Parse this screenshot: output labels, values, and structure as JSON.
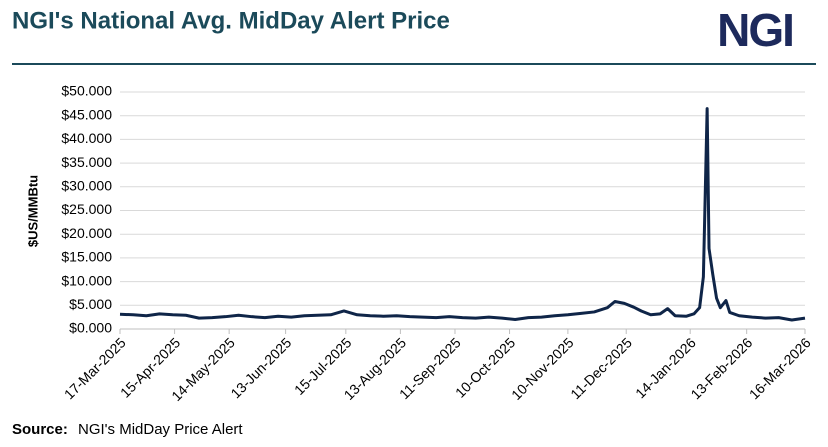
{
  "chart_data": {
    "type": "line",
    "title": "NGI's National Avg. MidDay Alert Price",
    "logo": "NGI",
    "y_label": "$US/MMBtu",
    "source_label": "Source:",
    "source_text": "NGI's MidDay Price Alert",
    "color": "#0f2548",
    "grid": true,
    "x": [
      "17-Mar-2025",
      "24-Mar-2025",
      "31-Mar-2025",
      "07-Apr-2025",
      "14-Apr-2025",
      "21-Apr-2025",
      "28-Apr-2025",
      "05-May-2025",
      "12-May-2025",
      "19-May-2025",
      "26-May-2025",
      "02-Jun-2025",
      "09-Jun-2025",
      "16-Jun-2025",
      "23-Jun-2025",
      "30-Jun-2025",
      "07-Jul-2025",
      "14-Jul-2025",
      "21-Jul-2025",
      "28-Jul-2025",
      "04-Aug-2025",
      "11-Aug-2025",
      "18-Aug-2025",
      "25-Aug-2025",
      "01-Sep-2025",
      "08-Sep-2025",
      "15-Sep-2025",
      "22-Sep-2025",
      "29-Sep-2025",
      "06-Oct-2025",
      "13-Oct-2025",
      "20-Oct-2025",
      "27-Oct-2025",
      "03-Nov-2025",
      "10-Nov-2025",
      "17-Nov-2025",
      "24-Nov-2025",
      "01-Dec-2025",
      "05-Dec-2025",
      "10-Dec-2025",
      "15-Dec-2025",
      "19-Dec-2025",
      "24-Dec-2025",
      "29-Dec-2025",
      "02-Jan-2026",
      "06-Jan-2026",
      "12-Jan-2026",
      "16-Jan-2026",
      "19-Jan-2026",
      "21-Jan-2026",
      "23-Jan-2026",
      "24-Jan-2026",
      "26-Jan-2026",
      "28-Jan-2026",
      "30-Jan-2026",
      "02-Feb-2026",
      "04-Feb-2026",
      "09-Feb-2026",
      "16-Feb-2026",
      "23-Feb-2026",
      "02-Mar-2026",
      "09-Mar-2026",
      "16-Mar-2026"
    ],
    "values": [
      3.1,
      3.0,
      2.8,
      3.2,
      3.0,
      2.9,
      2.3,
      2.4,
      2.6,
      2.9,
      2.6,
      2.4,
      2.7,
      2.5,
      2.8,
      2.9,
      3.0,
      3.8,
      3.0,
      2.8,
      2.7,
      2.8,
      2.6,
      2.5,
      2.4,
      2.6,
      2.4,
      2.3,
      2.5,
      2.3,
      2.0,
      2.4,
      2.5,
      2.8,
      3.0,
      3.3,
      3.6,
      4.5,
      5.8,
      5.4,
      4.6,
      3.8,
      3.0,
      3.2,
      4.3,
      2.8,
      2.7,
      3.2,
      4.5,
      11,
      46.5,
      17,
      11.5,
      6.5,
      4.5,
      6.0,
      3.5,
      2.8,
      2.5,
      2.3,
      2.4,
      1.9,
      2.3
    ],
    "xlim": [
      "17-Mar-2025",
      "16-Mar-2026"
    ],
    "xticks": [
      "17-Mar-2025",
      "15-Apr-2025",
      "14-May-2025",
      "13-Jun-2025",
      "15-Jul-2025",
      "13-Aug-2025",
      "11-Sep-2025",
      "10-Oct-2025",
      "10-Nov-2025",
      "11-Dec-2025",
      "14-Jan-2026",
      "13-Feb-2026",
      "16-Mar-2026"
    ],
    "ylim": [
      0,
      50
    ],
    "yticks": [
      {
        "value": 0,
        "label": "$0.000"
      },
      {
        "value": 5,
        "label": "$5.000"
      },
      {
        "value": 10,
        "label": "$10.000"
      },
      {
        "value": 15,
        "label": "$15.000"
      },
      {
        "value": 20,
        "label": "$20.000"
      },
      {
        "value": 25,
        "label": "$25.000"
      },
      {
        "value": 30,
        "label": "$30.000"
      },
      {
        "value": 35,
        "label": "$35.000"
      },
      {
        "value": 40,
        "label": "$40.000"
      },
      {
        "value": 45,
        "label": "$45.000"
      },
      {
        "value": 50,
        "label": "$50.000"
      }
    ]
  }
}
